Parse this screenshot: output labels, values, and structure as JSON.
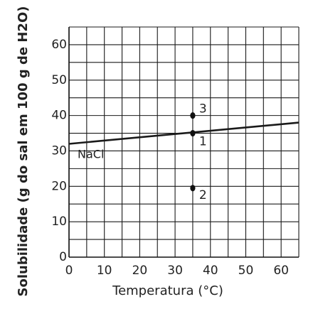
{
  "chart_data": {
    "type": "line",
    "xlabel": "Temperatura (°C)",
    "ylabel": "Solubilidade (g do sal em 100 g de H2O)",
    "xlim": [
      0,
      65
    ],
    "ylim": [
      0,
      65
    ],
    "x_ticks": [
      "0",
      "10",
      "20",
      "30",
      "40",
      "50",
      "60"
    ],
    "y_ticks": [
      "0",
      "10",
      "20",
      "30",
      "40",
      "50",
      "60"
    ],
    "grid": true,
    "grid_step": 5,
    "series": [
      {
        "name": "NaCl",
        "x": [
          0,
          65
        ],
        "y": [
          32,
          38
        ]
      }
    ],
    "points": [
      {
        "label": "1",
        "x": 35,
        "y": 35
      },
      {
        "label": "2",
        "x": 35,
        "y": 19.5
      },
      {
        "label": "3",
        "x": 35,
        "y": 40
      }
    ]
  }
}
